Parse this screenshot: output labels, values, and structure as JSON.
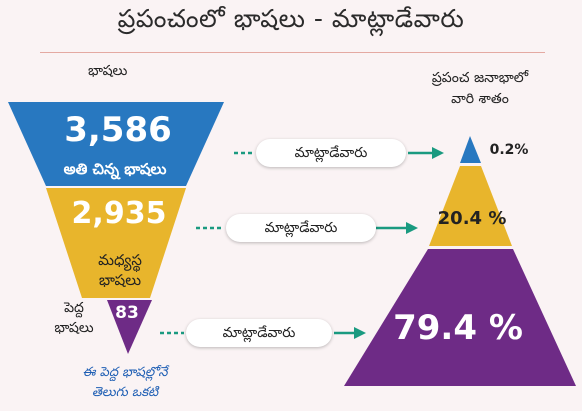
{
  "title": "ప్రపంచంలో భాషలు - మాట్లాడేవారు",
  "left_heading": "భాషలు",
  "right_heading": [
    "ప్రపంచ జనాభాలో",
    "వారి శాతం"
  ],
  "tiers": [
    {
      "count": "3,586",
      "label": "అతి చిన్న భాషలు",
      "speakers_label": "మాట్లాడేవారు",
      "percent": "0.2%",
      "color": "#2878c0"
    },
    {
      "count": "2,935",
      "label": [
        "మధ్యస్థ",
        "భాషలు"
      ],
      "speakers_label": "మాట్లాడేవారు",
      "percent": "20.4 %",
      "color": "#e8b52c"
    },
    {
      "count": "83",
      "label": [
        "పెద్ద",
        "భాషలు"
      ],
      "speakers_label": "మాట్లాడేవారు",
      "percent": "79.4 %",
      "color": "#6e2b86"
    }
  ],
  "note": [
    "ఈ పెద్ద భాషల్లోనే",
    "తెలుగు ఒకటి"
  ],
  "colors": {
    "arrow": "#1a9a80",
    "blue": "#2878c0",
    "gold": "#e8b52c",
    "purple": "#6e2b86"
  }
}
